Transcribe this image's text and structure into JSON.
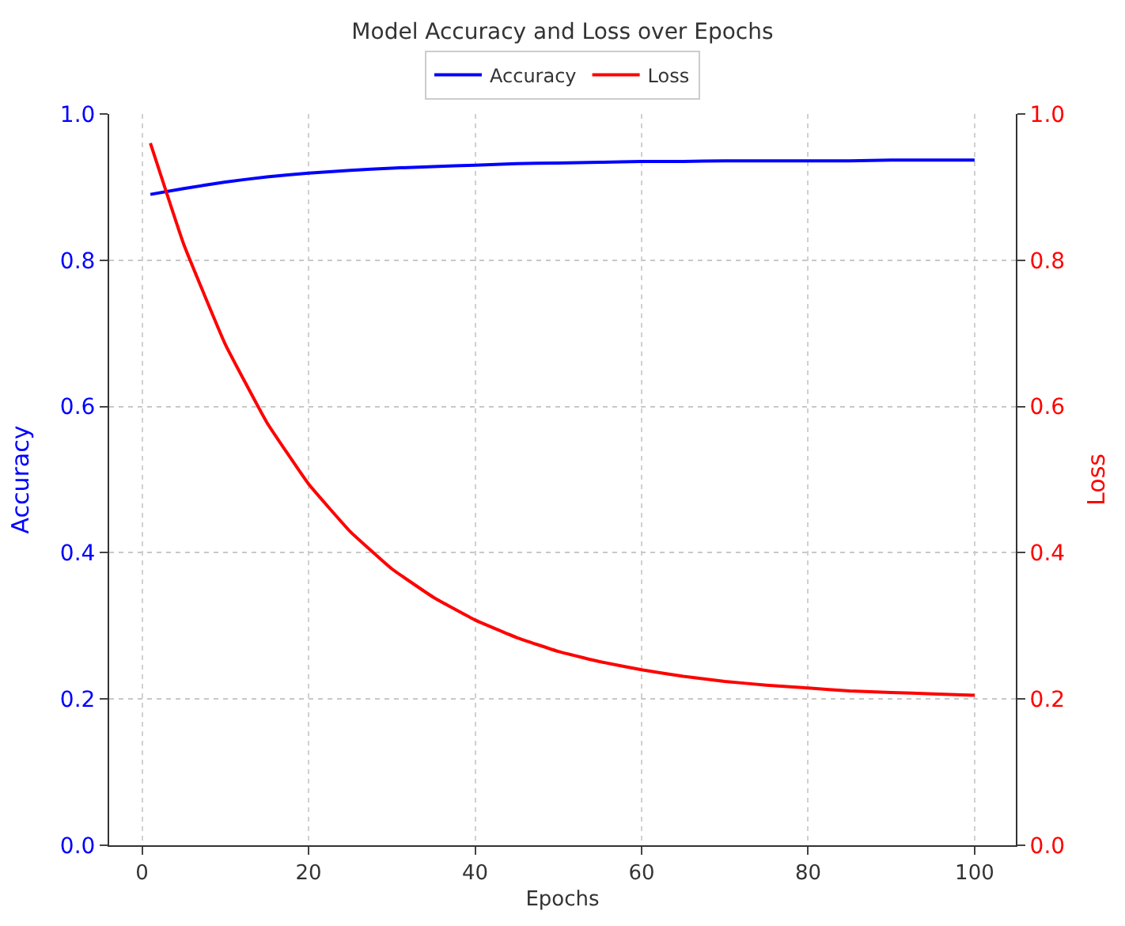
{
  "chart_data": {
    "type": "line",
    "title": "Model Accuracy and Loss over Epochs",
    "xlabel": "Epochs",
    "ylabel": "Accuracy",
    "y2label": "Loss",
    "x": [
      1,
      5,
      10,
      15,
      20,
      25,
      30,
      35,
      40,
      45,
      50,
      55,
      60,
      65,
      70,
      75,
      80,
      85,
      90,
      95,
      100
    ],
    "series": [
      {
        "name": "Accuracy",
        "color": "#0000ff",
        "values": [
          0.89,
          0.898,
          0.907,
          0.914,
          0.919,
          0.923,
          0.926,
          0.928,
          0.93,
          0.932,
          0.933,
          0.934,
          0.935,
          0.935,
          0.936,
          0.936,
          0.936,
          0.936,
          0.937,
          0.937,
          0.937
        ]
      },
      {
        "name": "Loss",
        "color": "#ff0000",
        "axis": "y2",
        "values": [
          0.96,
          0.822,
          0.685,
          0.578,
          0.494,
          0.429,
          0.378,
          0.339,
          0.308,
          0.284,
          0.265,
          0.251,
          0.24,
          0.231,
          0.224,
          0.219,
          0.215,
          0.211,
          0.209,
          0.207,
          0.205
        ]
      }
    ],
    "xlim": [
      -3.95,
      104.95
    ],
    "xticks": [
      0,
      20,
      40,
      60,
      80,
      100
    ],
    "ylim": [
      0,
      1
    ],
    "yticks": [
      {
        "value": 0,
        "label": "0.0"
      },
      0.2,
      0.4,
      0.6,
      0.8,
      {
        "value": 1,
        "label": "1.0"
      }
    ],
    "y2lim": [
      0,
      1
    ],
    "y2ticks": [
      {
        "value": 0,
        "label": "0.0"
      },
      0.2,
      0.4,
      0.6,
      0.8,
      {
        "value": 1,
        "label": "1.0"
      }
    ],
    "grid": true,
    "legend": "top",
    "line_style": "solid",
    "marker": "none"
  }
}
